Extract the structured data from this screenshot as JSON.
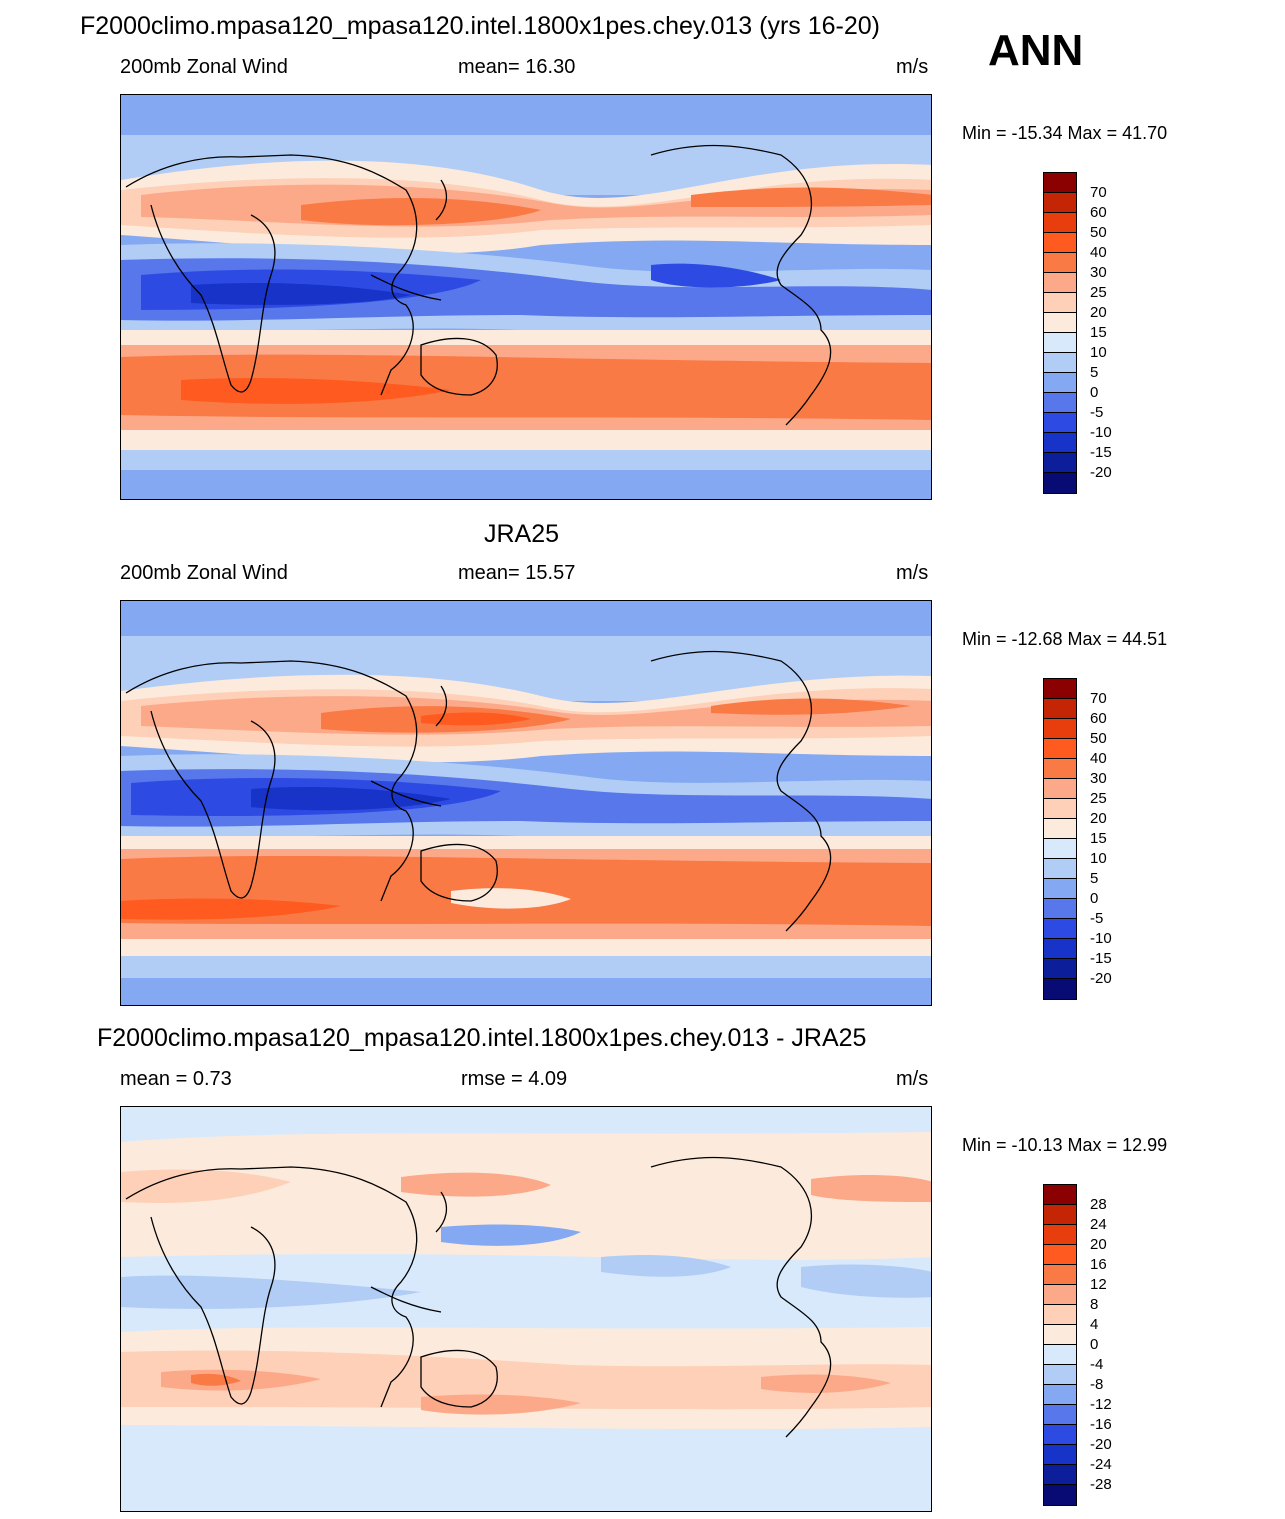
{
  "season": "ANN",
  "palette": {
    "wind": [
      "#8b0000",
      "#c42505",
      "#e83d0d",
      "#ff5a1f",
      "#f97a45",
      "#fca98a",
      "#fdd0b7",
      "#fcebdc",
      "#d7e9fb",
      "#b1cdf5",
      "#84a8f1",
      "#5877eb",
      "#2d4be2",
      "#1733c8",
      "#0c1e9a",
      "#070b73"
    ],
    "diff": [
      "#8b0000",
      "#c42505",
      "#e83d0d",
      "#ff5a1f",
      "#f97a45",
      "#fca98a",
      "#fdd0b7",
      "#fcebdc",
      "#d7e9fb",
      "#b1cdf5",
      "#84a8f1",
      "#5877eb",
      "#2d4be2",
      "#1733c8",
      "#0c1e9a",
      "#070b73"
    ]
  },
  "panels": [
    {
      "title": "F2000climo.mpasa120_mpasa120.intel.1800x1pes.chey.013 (yrs 16-20)",
      "left_label": "200mb Zonal Wind",
      "center_label": "mean=  16.30",
      "units": "m/s",
      "minmax": "Min = -15.34 Max =  41.70",
      "colorbar_levels": [
        "70",
        "60",
        "50",
        "40",
        "30",
        "25",
        "20",
        "15",
        "10",
        "5",
        "0",
        "-5",
        "-10",
        "-15",
        "-20"
      ]
    },
    {
      "title": "JRA25",
      "left_label": "200mb Zonal Wind",
      "center_label": "mean=  15.57",
      "units": "m/s",
      "minmax": "Min = -12.68 Max =  44.51",
      "colorbar_levels": [
        "70",
        "60",
        "50",
        "40",
        "30",
        "25",
        "20",
        "15",
        "10",
        "5",
        "0",
        "-5",
        "-10",
        "-15",
        "-20"
      ]
    },
    {
      "title": "F2000climo.mpasa120_mpasa120.intel.1800x1pes.chey.013 - JRA25",
      "left_label": "mean =   0.73",
      "center_label": "rmse =    4.09",
      "units": "m/s",
      "minmax": "Min = -10.13 Max =  12.99",
      "colorbar_levels": [
        "28",
        "24",
        "20",
        "16",
        "12",
        "8",
        "4",
        "0",
        "-4",
        "-8",
        "-12",
        "-16",
        "-20",
        "-24",
        "-28"
      ]
    }
  ]
}
